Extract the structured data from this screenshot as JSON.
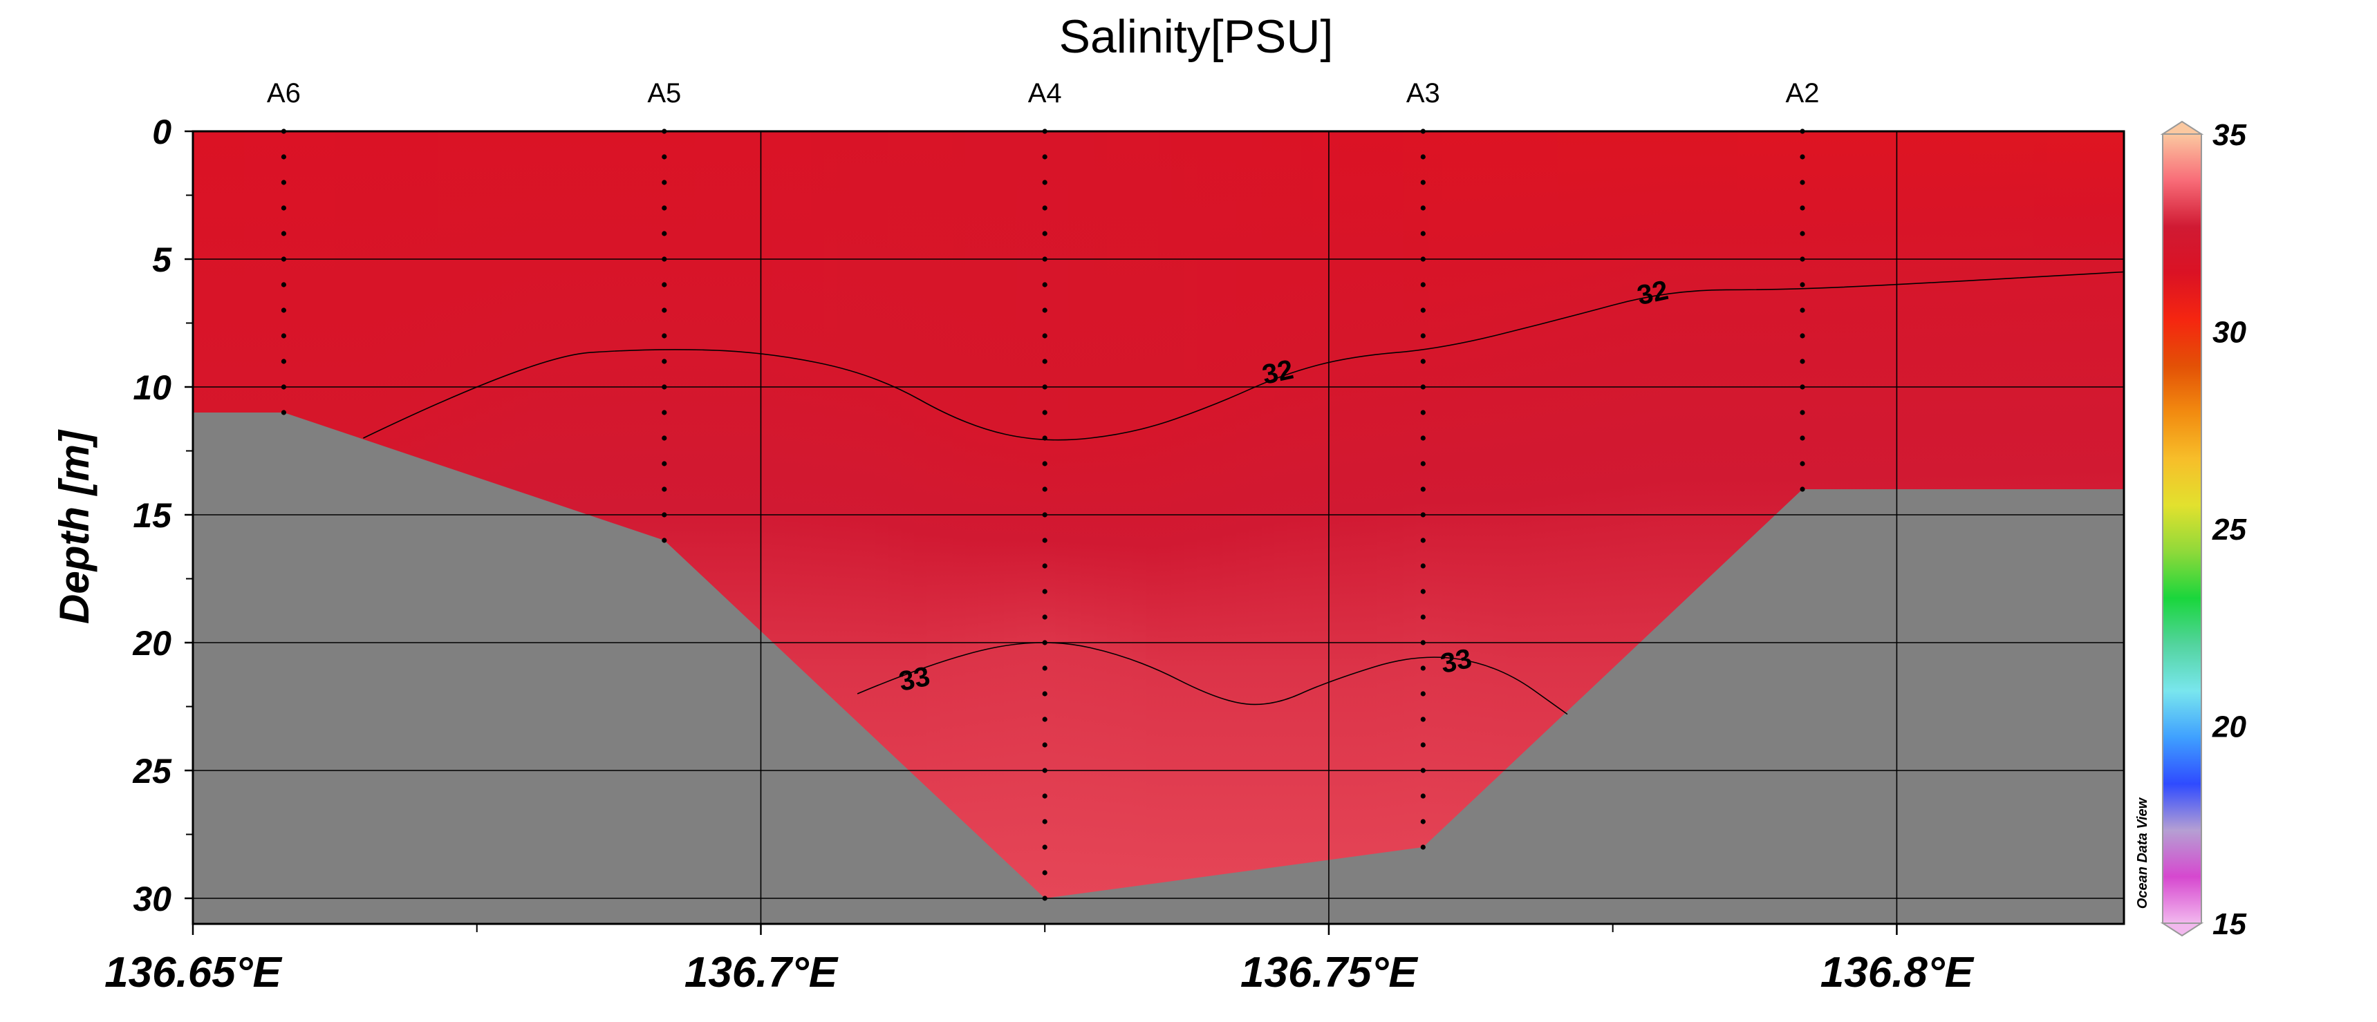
{
  "chart_data": {
    "type": "heatmap",
    "title": "Salinity[PSU]",
    "xlabel": "",
    "ylabel": "Depth [m]",
    "xlim": [
      136.65,
      136.82
    ],
    "ylim": [
      0,
      31
    ],
    "y_inverted": true,
    "x_ticks": [
      136.65,
      136.7,
      136.75,
      136.8
    ],
    "x_tick_labels": [
      "136.65°E",
      "136.7°E",
      "136.75°E",
      "136.8°E"
    ],
    "x_minor_ticks": [
      136.675,
      136.725,
      136.775
    ],
    "y_ticks": [
      0,
      5,
      10,
      15,
      20,
      25,
      30
    ],
    "y_tick_labels": [
      "0",
      "5",
      "10",
      "15",
      "20",
      "25",
      "30"
    ],
    "y_minor_ticks": [
      2.5,
      7.5,
      12.5,
      17.5,
      22.5,
      27.5
    ],
    "grid": true,
    "stations": [
      {
        "name": "A6",
        "x": 136.658,
        "bottom_depth": 11
      },
      {
        "name": "A5",
        "x": 136.6915,
        "bottom_depth": 16
      },
      {
        "name": "A4",
        "x": 136.725,
        "bottom_depth": 30
      },
      {
        "name": "A3",
        "x": 136.7583,
        "bottom_depth": 28
      },
      {
        "name": "A2",
        "x": 136.7917,
        "bottom_depth": 14
      }
    ],
    "sample_depth_step": 1,
    "bathymetry": [
      [
        136.65,
        11
      ],
      [
        136.658,
        11
      ],
      [
        136.6915,
        16
      ],
      [
        136.725,
        30
      ],
      [
        136.7583,
        28
      ],
      [
        136.7917,
        14
      ],
      [
        136.82,
        14
      ]
    ],
    "colorbar": {
      "min": 15,
      "max": 35,
      "ticks": [
        15,
        20,
        25,
        30,
        35
      ],
      "tick_labels": [
        "15",
        "20",
        "25",
        "30",
        "35"
      ],
      "extend": "both"
    },
    "contours": [
      {
        "level": 32,
        "label": "32",
        "points": [
          [
            136.665,
            12
          ],
          [
            136.68,
            8.8
          ],
          [
            136.69,
            8.5
          ],
          [
            136.7,
            8.6
          ],
          [
            136.71,
            9.5
          ],
          [
            136.718,
            11.5
          ],
          [
            136.725,
            12.2
          ],
          [
            136.733,
            11.8
          ],
          [
            136.74,
            10.7
          ],
          [
            136.746,
            9.5
          ],
          [
            136.752,
            8.8
          ],
          [
            136.76,
            8.5
          ],
          [
            136.77,
            7.4
          ],
          [
            136.78,
            6.2
          ],
          [
            136.79,
            6.2
          ],
          [
            136.8,
            6.0
          ],
          [
            136.82,
            5.5
          ]
        ],
        "label_positions": [
          [
            136.7455,
            9.4
          ],
          [
            136.7785,
            6.3
          ]
        ]
      },
      {
        "level": 33,
        "label": "33",
        "points": [
          [
            136.7085,
            22.0
          ],
          [
            136.716,
            20.6
          ],
          [
            136.725,
            19.8
          ],
          [
            136.733,
            20.6
          ],
          [
            136.7405,
            22.3
          ],
          [
            136.745,
            22.5
          ],
          [
            136.75,
            21.5
          ],
          [
            136.758,
            20.4
          ],
          [
            136.765,
            20.9
          ],
          [
            136.771,
            22.8
          ]
        ],
        "label_positions": [
          [
            136.7135,
            21.4
          ],
          [
            136.7612,
            20.7
          ]
        ]
      }
    ],
    "field": {
      "surface_values": [
        [
          136.65,
          31.5
        ],
        [
          136.7,
          31.6
        ],
        [
          136.725,
          31.8
        ],
        [
          136.76,
          31.4
        ],
        [
          136.82,
          31.3
        ]
      ],
      "iso_32_depth": "contour level 32",
      "iso_33_depth": "contour level 33",
      "max_value": 33.3
    }
  },
  "watermark": "Ocean Data View",
  "colors": {
    "land": "#808080",
    "plot_frame": "#000000",
    "colormap": [
      "#f2b8ee",
      "#d648cf",
      "#b59fd3",
      "#2f4bff",
      "#3fa0ff",
      "#79e6ee",
      "#53d49e",
      "#1ad63c",
      "#8fd93a",
      "#e2e12e",
      "#f7be2a",
      "#f28b10",
      "#e35106",
      "#f52610",
      "#db1224",
      "#d01a33",
      "#f86c78",
      "#fbc8a0"
    ]
  }
}
